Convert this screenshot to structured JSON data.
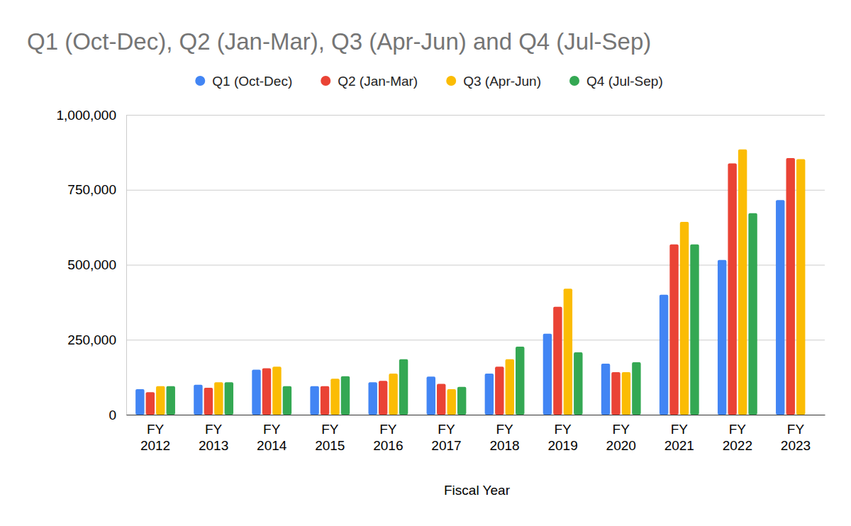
{
  "chart_data": {
    "type": "bar",
    "title": "Q1 (Oct-Dec), Q2 (Jan-Mar), Q3 (Apr-Jun) and Q4 (Jul-Sep)",
    "x_label": "Fiscal Year",
    "categories": [
      "FY 2012",
      "FY 2013",
      "FY 2014",
      "FY 2015",
      "FY 2016",
      "FY 2017",
      "FY 2018",
      "FY 2019",
      "FY 2020",
      "FY 2021",
      "FY 2022",
      "FY 2023"
    ],
    "series": [
      {
        "name": "Q1 (Oct-Dec)",
        "color": "#4285f4",
        "values": [
          85000,
          100000,
          150000,
          95000,
          108000,
          127000,
          137000,
          270000,
          170000,
          400000,
          516000,
          716000
        ]
      },
      {
        "name": "Q2 (Jan-Mar)",
        "color": "#ea4335",
        "values": [
          75000,
          90000,
          155000,
          95000,
          113000,
          103000,
          160000,
          360000,
          142000,
          568000,
          838000,
          856000
        ]
      },
      {
        "name": "Q3 (Apr-Jun)",
        "color": "#fbbc04",
        "values": [
          95000,
          108000,
          160000,
          120000,
          137000,
          85000,
          185000,
          420000,
          142000,
          643000,
          885000,
          852000
        ]
      },
      {
        "name": "Q4 (Jul-Sep)",
        "color": "#34a853",
        "values": [
          95000,
          108000,
          95000,
          128000,
          185000,
          93000,
          227000,
          208000,
          175000,
          568000,
          672000,
          null
        ]
      }
    ],
    "ylim": [
      0,
      1000000
    ],
    "yticks": [
      0,
      {
        "value": 250000,
        "label": "250,000"
      },
      {
        "value": 500000,
        "label": "500,000"
      },
      {
        "value": 750000,
        "label": "750,000"
      },
      {
        "value": 1000000,
        "label": "1,000,000"
      }
    ],
    "grid": true,
    "legend": "top"
  }
}
